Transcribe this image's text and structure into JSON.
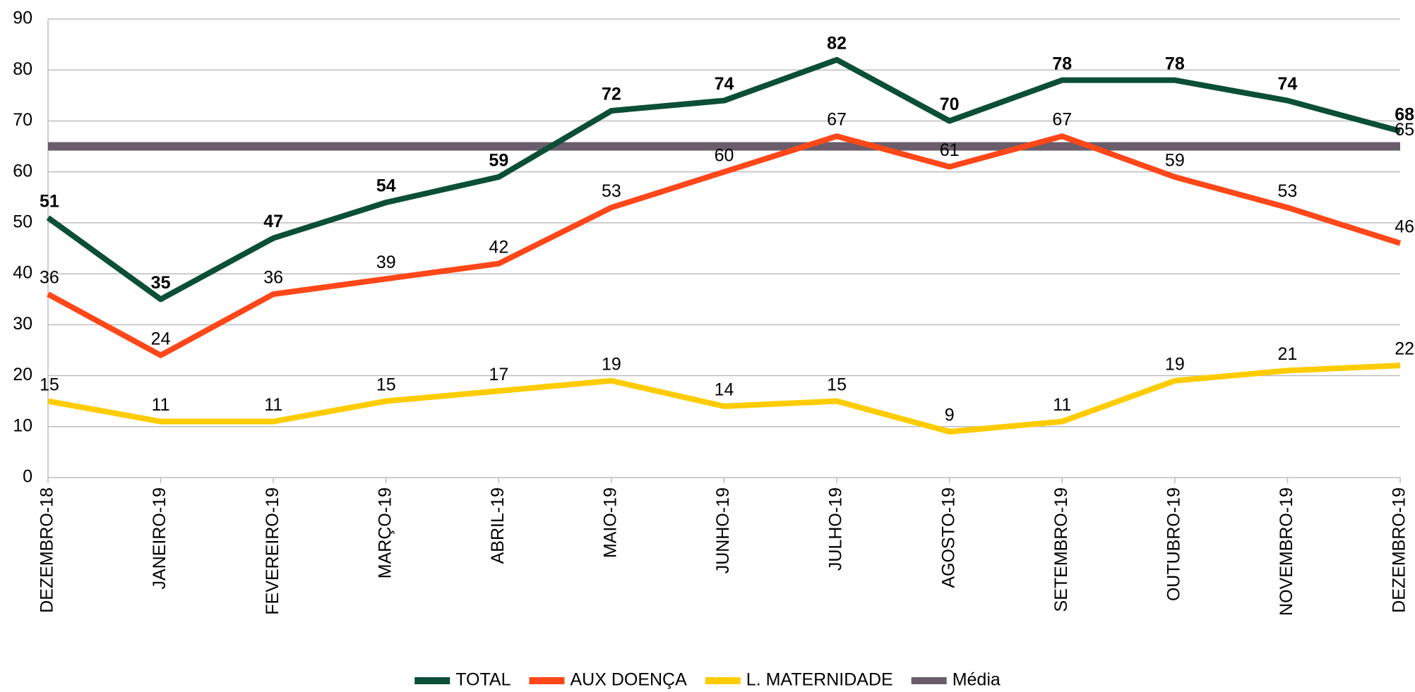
{
  "chart_data": {
    "type": "line",
    "categories": [
      "DEZEMBRO-18",
      "JANEIRO-19",
      "FEVEREIRO-19",
      "MARÇO-19",
      "ABRIL-19",
      "MAIO-19",
      "JUNHO-19",
      "JULHO-19",
      "AGOSTO-19",
      "SETEMBRO-19",
      "OUTUBRO-19",
      "NOVEMBRO-19",
      "DEZEMBRO-19"
    ],
    "series": [
      {
        "name": "TOTAL",
        "color": "#0b4f36",
        "values": [
          51,
          35,
          47,
          54,
          59,
          72,
          74,
          82,
          70,
          78,
          78,
          74,
          68
        ]
      },
      {
        "name": "AUX DOENÇA",
        "color": "#ff4719",
        "values": [
          36,
          24,
          36,
          39,
          42,
          53,
          60,
          67,
          61,
          67,
          59,
          53,
          46
        ]
      },
      {
        "name": "L. MATERNIDADE",
        "color": "#ffcc00",
        "values": [
          15,
          11,
          11,
          15,
          17,
          19,
          14,
          15,
          9,
          11,
          19,
          21,
          22
        ]
      },
      {
        "name": "Média",
        "color": "#6a5c6a",
        "values": [
          65,
          65,
          65,
          65,
          65,
          65,
          65,
          65,
          65,
          65,
          65,
          65,
          65
        ]
      }
    ],
    "ylim": [
      0,
      90
    ],
    "yticks": [
      0,
      10,
      20,
      30,
      40,
      50,
      60,
      70,
      80,
      90
    ],
    "grid": true,
    "legend": "bottom"
  }
}
